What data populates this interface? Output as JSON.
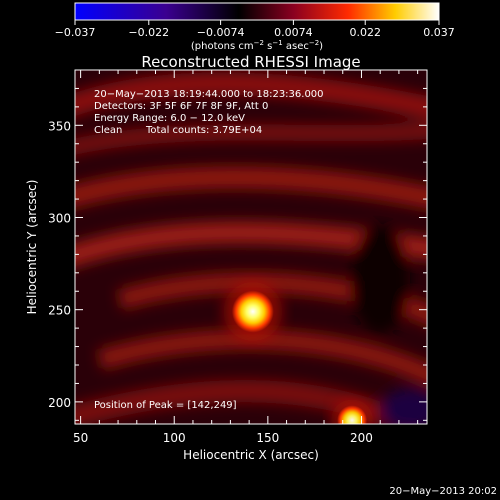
{
  "chart_data": {
    "type": "heatmap",
    "title": "Reconstructed RHESSI Image",
    "xlabel": "Heliocentric X (arcsec)",
    "ylabel": "Heliocentric Y (arcsec)",
    "xlim": [
      47,
      235
    ],
    "ylim": [
      188,
      380
    ],
    "xticks": [
      50,
      100,
      150,
      200
    ],
    "yticks": [
      200,
      250,
      300,
      350
    ],
    "colorbar": {
      "min": -0.037,
      "max": 0.037,
      "tick_values": [
        -0.037,
        -0.022,
        -0.0074,
        0.0074,
        0.022,
        0.037
      ],
      "tick_labels": [
        "−0.037",
        "−0.022",
        "−0.0074",
        "0.0074",
        "0.022",
        "0.037"
      ],
      "units_main": "(photons cm",
      "units_sup1": "−2",
      "units_mid": " s",
      "units_sup2": "−1",
      "units_end": " asec",
      "units_sup3": "−2",
      "units_close": ")",
      "colors": [
        "#0000ff",
        "#000000",
        "#ff0000",
        "#ffff00",
        "#ffffff"
      ]
    },
    "sources": [
      {
        "x": 142,
        "y": 249,
        "radius": 7,
        "peak": 1.0
      },
      {
        "x": 195,
        "y": 190,
        "radius": 5,
        "peak": 0.95
      }
    ],
    "annotations": {
      "line1": "20−May−2013 18:19:44.000 to 18:23:36.000",
      "line2": "Detectors: 3F 5F 6F 7F 8F 9F, Att 0",
      "line3": "Energy Range: 6.0 − 12.0 keV",
      "line4_a": "Clean",
      "line4_b": "Total counts: 3.79E+04",
      "peak_position": "Position of Peak = [142,249]"
    }
  },
  "footer": {
    "timestamp": "20−May−2013 20:02"
  }
}
